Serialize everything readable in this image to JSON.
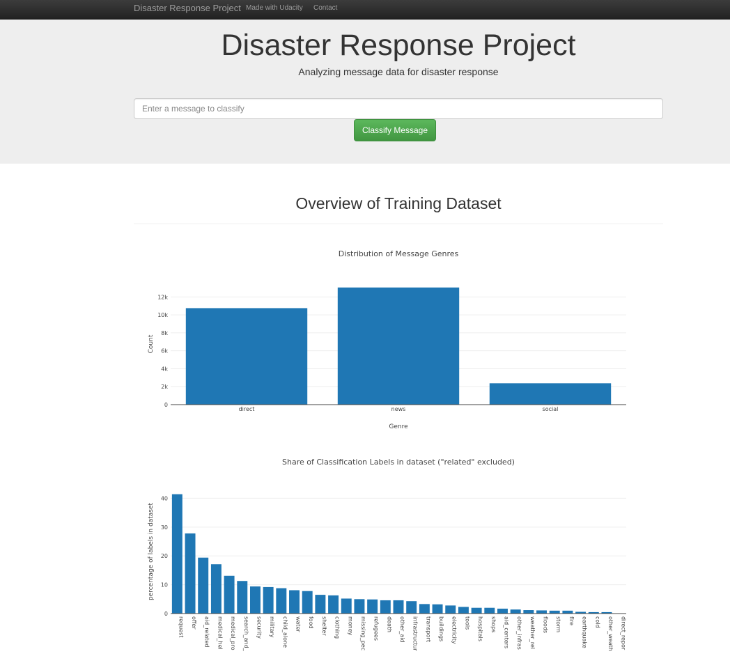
{
  "navbar": {
    "brand": "Disaster Response Project",
    "links": [
      "Made with Udacity",
      "Contact"
    ]
  },
  "header": {
    "title": "Disaster Response Project",
    "subtitle": "Analyzing message data for disaster response"
  },
  "classify_form": {
    "placeholder": "Enter a message to classify",
    "button_label": "Classify Message"
  },
  "overview": {
    "title": "Overview of Training Dataset"
  },
  "colors": {
    "bar": "#1f77b4",
    "button": "#5cb85c",
    "navbar": "#222222",
    "jumbotron": "#eeeeee"
  },
  "chart_data": [
    {
      "type": "bar",
      "title": "Distribution of Message Genres",
      "xlabel": "Genre",
      "ylabel": "Count",
      "categories": [
        "direct",
        "news",
        "social"
      ],
      "values": [
        10750,
        13050,
        2380
      ],
      "ylim": [
        0,
        13500
      ],
      "yticks": [
        0,
        2000,
        4000,
        6000,
        8000,
        10000,
        12000
      ],
      "ytick_labels": [
        "0",
        "2k",
        "4k",
        "6k",
        "8k",
        "10k",
        "12k"
      ],
      "grid": true
    },
    {
      "type": "bar",
      "title": "Share of Classification Labels in dataset (\"related\" excluded)",
      "xlabel": "",
      "ylabel": "percentage of labels in dataset",
      "categories": [
        "request",
        "offer",
        "aid_related",
        "medical_hel",
        "medical_pro",
        "search_and_",
        "security",
        "military",
        "child_alone",
        "water",
        "food",
        "shelter",
        "clothing",
        "money",
        "missing_pec",
        "refugees",
        "death",
        "other_aid",
        "infrastructur",
        "transport",
        "buildings",
        "electricity",
        "tools",
        "hospitals",
        "shops",
        "aid_centers",
        "other_infras",
        "weather_rel",
        "floods",
        "storm",
        "fire",
        "earthquake",
        "cold",
        "other_weath",
        "direct_repor"
      ],
      "values": [
        41.4,
        27.8,
        19.4,
        17.1,
        13.1,
        11.3,
        9.4,
        9.2,
        8.8,
        8.1,
        7.8,
        6.5,
        6.3,
        5.2,
        5.0,
        4.9,
        4.6,
        4.6,
        4.3,
        3.3,
        3.2,
        2.8,
        2.3,
        2.0,
        2.0,
        1.7,
        1.4,
        1.2,
        1.1,
        1.0,
        1.0,
        0.6,
        0.5,
        0.5,
        0.1
      ],
      "ylim": [
        0,
        43
      ],
      "yticks": [
        0,
        10,
        20,
        30,
        40
      ],
      "ytick_labels": [
        "0",
        "10",
        "20",
        "30",
        "40"
      ],
      "grid": true
    }
  ]
}
